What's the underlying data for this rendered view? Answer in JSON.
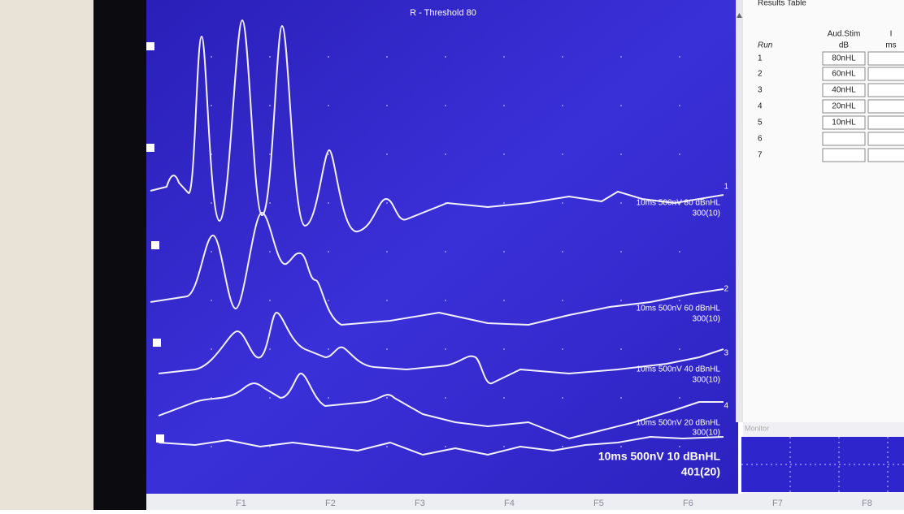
{
  "plot": {
    "title": "R - Threshold 80",
    "traces": [
      {
        "number": "1",
        "label": "10ms 500nV 80 dBnHL",
        "count": "300(10)"
      },
      {
        "number": "2",
        "label": "10ms 500nV 60 dBnHL",
        "count": "300(10)"
      },
      {
        "number": "3",
        "label": "10ms 500nV 40 dBnHL",
        "count": "300(10)"
      },
      {
        "number": "4",
        "label": "10ms 500nV 20 dBnHL",
        "count": "300(10)"
      },
      {
        "label": "10ms 500nV 10 dBnHL",
        "count": "401(20)"
      }
    ]
  },
  "results_table": {
    "title": "Results Table",
    "columns": [
      {
        "label": "Run"
      },
      {
        "label": "Aud.Stim",
        "unit": "dB"
      },
      {
        "label": "I",
        "unit": "ms"
      }
    ],
    "rows": [
      [
        "1",
        "80nHL"
      ],
      [
        "2",
        "60nHL"
      ],
      [
        "3",
        "40nHL"
      ],
      [
        "4",
        "20nHL"
      ],
      [
        "5",
        "10nHL"
      ],
      [
        "6"
      ],
      [
        "7"
      ]
    ]
  },
  "monitor": {
    "title": "Monitor"
  },
  "function_keys": [
    "F1",
    "F2",
    "F3",
    "F4",
    "F5",
    "F6",
    "F7",
    "F8"
  ]
}
